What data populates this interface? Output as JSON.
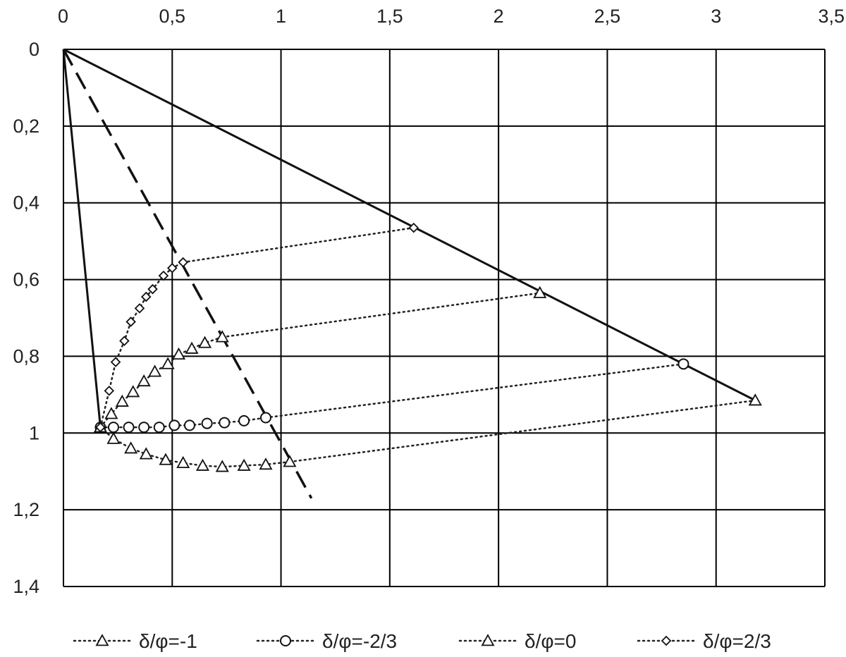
{
  "chart_data": {
    "type": "scatter",
    "title": "",
    "xlabel": "",
    "ylabel": "",
    "xlim": [
      0,
      3.5
    ],
    "ylim": [
      0,
      1.4
    ],
    "x_axis_position": "top",
    "y_axis_inverted": true,
    "grid": true,
    "legend_position": "bottom",
    "x_ticks": [
      {
        "value": 0,
        "label": "0"
      },
      {
        "value": 0.5,
        "label": "0,5"
      },
      {
        "value": 1,
        "label": "1"
      },
      {
        "value": 1.5,
        "label": "1,5"
      },
      {
        "value": 2,
        "label": "2"
      },
      {
        "value": 2.5,
        "label": "2,5"
      },
      {
        "value": 3,
        "label": "3"
      },
      {
        "value": 3.5,
        "label": "3,5"
      }
    ],
    "y_ticks": [
      {
        "value": 0,
        "label": "0"
      },
      {
        "value": 0.2,
        "label": "0,2"
      },
      {
        "value": 0.4,
        "label": "0,4"
      },
      {
        "value": 0.6,
        "label": "0,6"
      },
      {
        "value": 0.8,
        "label": "0,8"
      },
      {
        "value": 1,
        "label": "1"
      },
      {
        "value": 1.2,
        "label": "1,2"
      },
      {
        "value": 1.4,
        "label": "1,4"
      }
    ],
    "series": [
      {
        "name": "δ/φ=-1",
        "marker": "triangle",
        "points": [
          [
            0.17,
            0.985
          ],
          [
            0.23,
            1.015
          ],
          [
            0.31,
            1.04
          ],
          [
            0.38,
            1.055
          ],
          [
            0.47,
            1.07
          ],
          [
            0.55,
            1.078
          ],
          [
            0.64,
            1.085
          ],
          [
            0.73,
            1.088
          ],
          [
            0.83,
            1.085
          ],
          [
            0.93,
            1.082
          ],
          [
            1.04,
            1.075
          ]
        ],
        "extension": [
          [
            1.04,
            1.075
          ],
          [
            3.18,
            0.915
          ]
        ]
      },
      {
        "name": "δ/φ=-2/3",
        "marker": "circle",
        "points": [
          [
            0.17,
            0.985
          ],
          [
            0.23,
            0.985
          ],
          [
            0.3,
            0.985
          ],
          [
            0.37,
            0.985
          ],
          [
            0.44,
            0.985
          ],
          [
            0.51,
            0.98
          ],
          [
            0.58,
            0.98
          ],
          [
            0.66,
            0.975
          ],
          [
            0.74,
            0.973
          ],
          [
            0.83,
            0.968
          ],
          [
            0.93,
            0.96
          ]
        ],
        "extension": [
          [
            0.93,
            0.96
          ],
          [
            2.85,
            0.82
          ]
        ]
      },
      {
        "name": "δ/φ=0",
        "marker": "triangle",
        "points": [
          [
            0.17,
            0.985
          ],
          [
            0.22,
            0.95
          ],
          [
            0.27,
            0.918
          ],
          [
            0.32,
            0.893
          ],
          [
            0.37,
            0.865
          ],
          [
            0.42,
            0.84
          ],
          [
            0.48,
            0.82
          ],
          [
            0.53,
            0.795
          ],
          [
            0.59,
            0.78
          ],
          [
            0.65,
            0.765
          ],
          [
            0.73,
            0.75
          ]
        ],
        "extension": [
          [
            0.73,
            0.75
          ],
          [
            2.19,
            0.635
          ]
        ]
      },
      {
        "name": "δ/φ=2/3",
        "marker": "diamond",
        "points": [
          [
            0.17,
            0.985
          ],
          [
            0.21,
            0.89
          ],
          [
            0.24,
            0.815
          ],
          [
            0.28,
            0.76
          ],
          [
            0.31,
            0.71
          ],
          [
            0.35,
            0.675
          ],
          [
            0.38,
            0.645
          ],
          [
            0.41,
            0.625
          ],
          [
            0.46,
            0.59
          ],
          [
            0.5,
            0.57
          ],
          [
            0.55,
            0.555
          ]
        ],
        "extension": [
          [
            0.55,
            0.555
          ],
          [
            1.61,
            0.465
          ]
        ]
      }
    ],
    "reference_lines": [
      {
        "style": "solid",
        "points": [
          [
            0,
            0
          ],
          [
            3.18,
            0.915
          ]
        ]
      },
      {
        "style": "solid",
        "points": [
          [
            0,
            0
          ],
          [
            0.17,
            0.985
          ]
        ]
      },
      {
        "style": "dashed",
        "points": [
          [
            0,
            0
          ],
          [
            1.14,
            1.17
          ]
        ]
      }
    ]
  }
}
